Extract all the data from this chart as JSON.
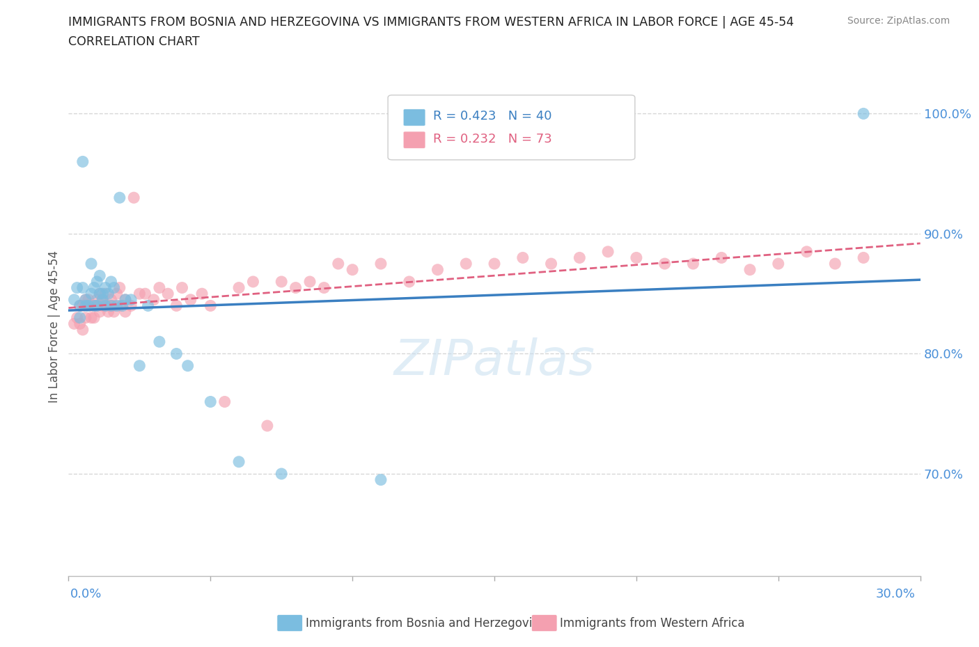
{
  "title_line1": "IMMIGRANTS FROM BOSNIA AND HERZEGOVINA VS IMMIGRANTS FROM WESTERN AFRICA IN LABOR FORCE | AGE 45-54",
  "title_line2": "CORRELATION CHART",
  "source": "Source: ZipAtlas.com",
  "ylabel_label": "In Labor Force | Age 45-54",
  "ytick_values": [
    0.7,
    0.8,
    0.9,
    1.0
  ],
  "xlim": [
    0.0,
    0.3
  ],
  "ylim": [
    0.615,
    1.03
  ],
  "color_bosnia": "#7bbde0",
  "color_wesafrica": "#f4a0b0",
  "color_trendline_bosnia": "#3a7fc1",
  "color_trendline_wesafrica": "#e06080",
  "bosnia_x": [
    0.002,
    0.003,
    0.004,
    0.004,
    0.005,
    0.005,
    0.006,
    0.006,
    0.007,
    0.008,
    0.008,
    0.009,
    0.009,
    0.01,
    0.01,
    0.011,
    0.011,
    0.012,
    0.012,
    0.013,
    0.013,
    0.014,
    0.015,
    0.015,
    0.016,
    0.017,
    0.018,
    0.019,
    0.02,
    0.022,
    0.025,
    0.028,
    0.032,
    0.038,
    0.042,
    0.05,
    0.06,
    0.075,
    0.11,
    0.28
  ],
  "bosnia_y": [
    0.845,
    0.855,
    0.84,
    0.83,
    0.96,
    0.855,
    0.84,
    0.845,
    0.84,
    0.85,
    0.875,
    0.855,
    0.84,
    0.84,
    0.86,
    0.865,
    0.85,
    0.845,
    0.85,
    0.855,
    0.84,
    0.85,
    0.84,
    0.86,
    0.855,
    0.84,
    0.93,
    0.84,
    0.845,
    0.845,
    0.79,
    0.84,
    0.81,
    0.8,
    0.79,
    0.76,
    0.71,
    0.7,
    0.695,
    1.0
  ],
  "wesafrica_x": [
    0.002,
    0.003,
    0.004,
    0.004,
    0.005,
    0.005,
    0.006,
    0.006,
    0.007,
    0.007,
    0.008,
    0.008,
    0.009,
    0.009,
    0.01,
    0.01,
    0.011,
    0.011,
    0.012,
    0.012,
    0.013,
    0.013,
    0.014,
    0.014,
    0.015,
    0.015,
    0.016,
    0.016,
    0.017,
    0.018,
    0.018,
    0.02,
    0.02,
    0.022,
    0.023,
    0.025,
    0.027,
    0.03,
    0.032,
    0.035,
    0.038,
    0.04,
    0.043,
    0.047,
    0.05,
    0.055,
    0.06,
    0.065,
    0.07,
    0.075,
    0.08,
    0.085,
    0.09,
    0.095,
    0.1,
    0.11,
    0.12,
    0.13,
    0.14,
    0.15,
    0.16,
    0.17,
    0.18,
    0.19,
    0.2,
    0.21,
    0.22,
    0.23,
    0.24,
    0.25,
    0.26,
    0.27,
    0.28
  ],
  "wesafrica_y": [
    0.825,
    0.83,
    0.825,
    0.84,
    0.82,
    0.84,
    0.83,
    0.845,
    0.84,
    0.845,
    0.83,
    0.84,
    0.84,
    0.83,
    0.84,
    0.845,
    0.835,
    0.85,
    0.84,
    0.845,
    0.84,
    0.85,
    0.835,
    0.84,
    0.845,
    0.84,
    0.835,
    0.84,
    0.85,
    0.84,
    0.855,
    0.835,
    0.845,
    0.84,
    0.93,
    0.85,
    0.85,
    0.845,
    0.855,
    0.85,
    0.84,
    0.855,
    0.845,
    0.85,
    0.84,
    0.76,
    0.855,
    0.86,
    0.74,
    0.86,
    0.855,
    0.86,
    0.855,
    0.875,
    0.87,
    0.875,
    0.86,
    0.87,
    0.875,
    0.875,
    0.88,
    0.875,
    0.88,
    0.885,
    0.88,
    0.875,
    0.875,
    0.88,
    0.87,
    0.875,
    0.885,
    0.875,
    0.88
  ]
}
